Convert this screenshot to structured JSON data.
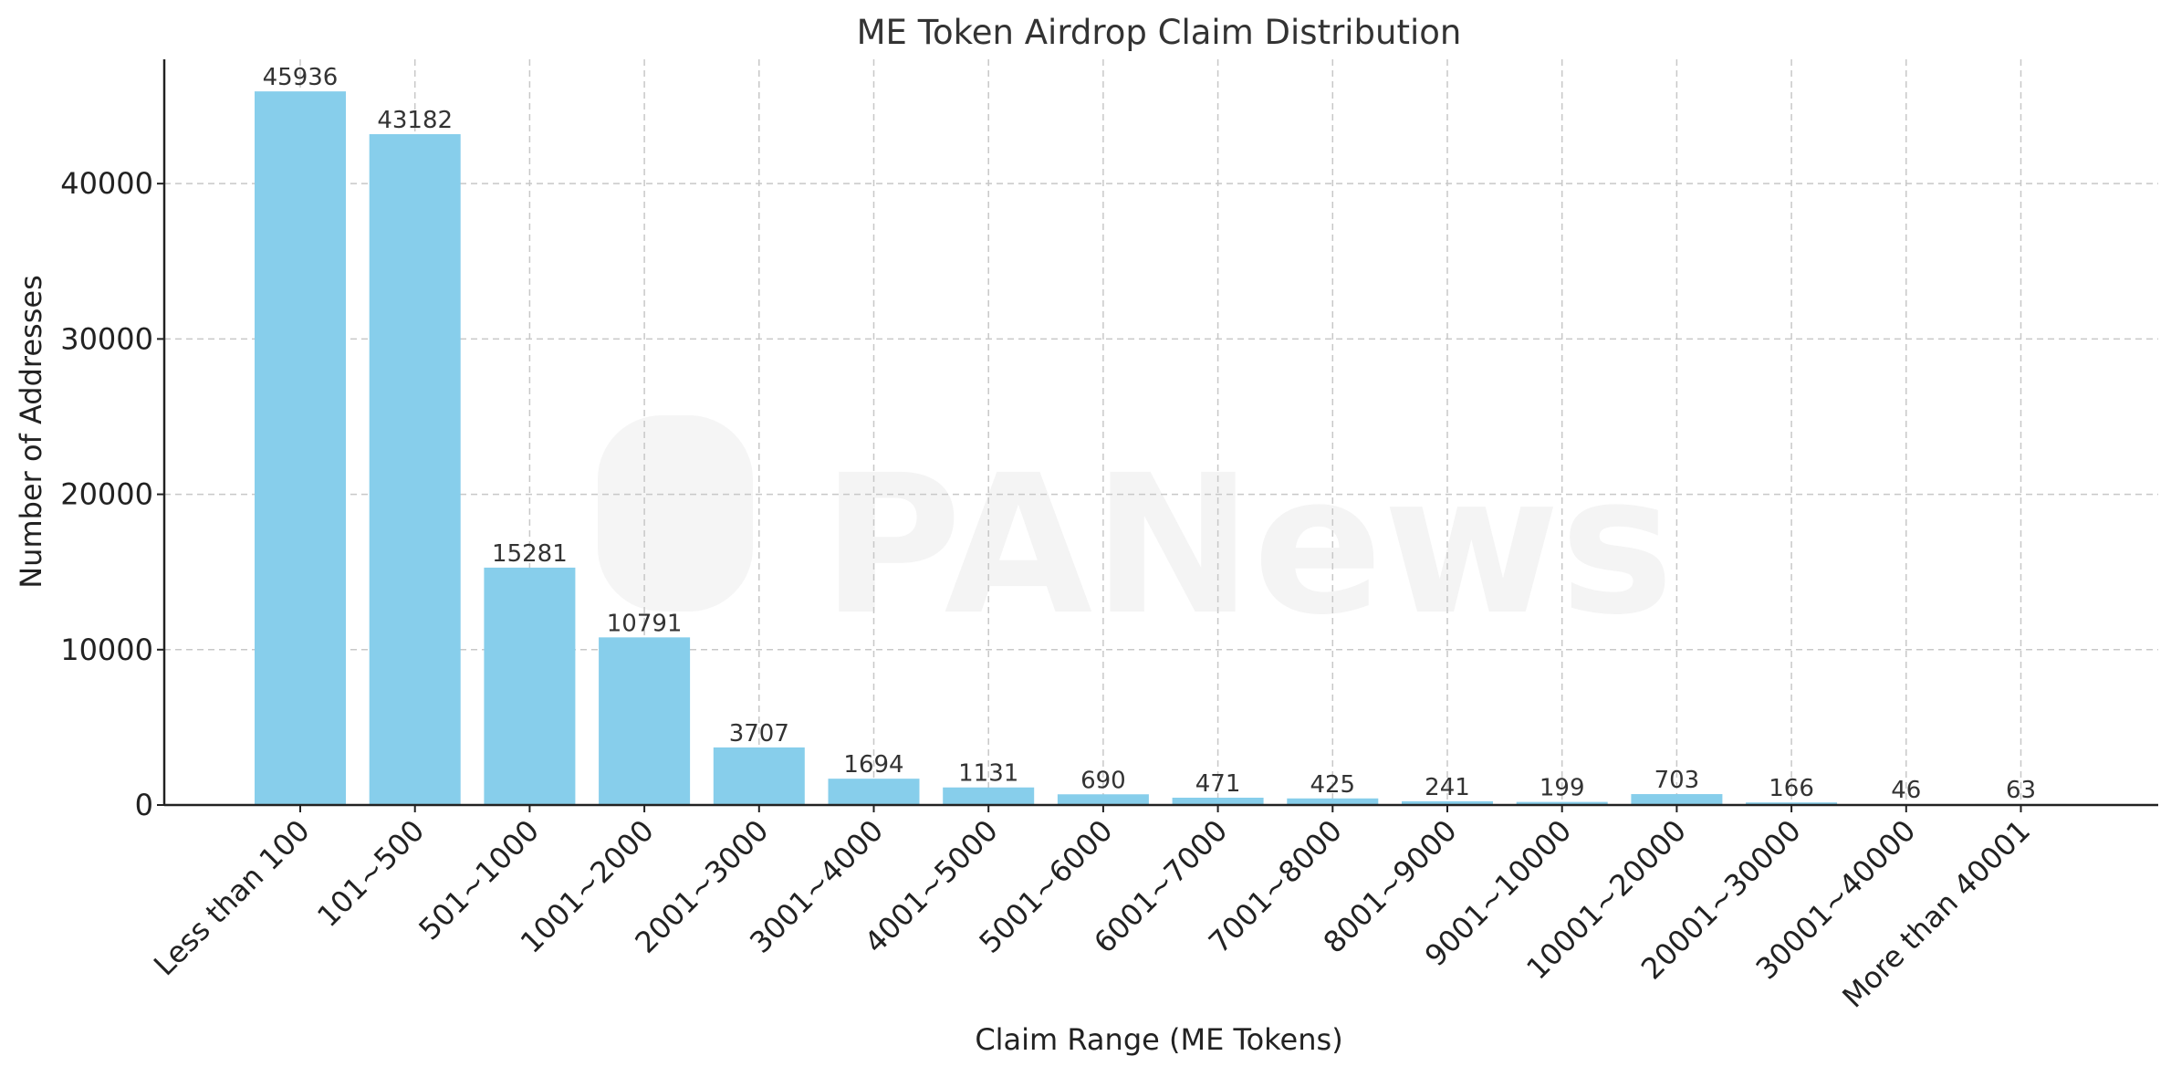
{
  "chart_data": {
    "type": "bar",
    "title": "ME Token Airdrop Claim Distribution",
    "xlabel": "Claim Range (ME Tokens)",
    "ylabel": "Number of Addresses",
    "categories": [
      "Less than 100",
      "101~500",
      "501~1000",
      "1001~2000",
      "2001~3000",
      "3001~4000",
      "4001~5000",
      "5001~6000",
      "6001~7000",
      "7001~8000",
      "8001~9000",
      "9001~10000",
      "10001~20000",
      "20001~30000",
      "30001~40000",
      "More than 40001"
    ],
    "values": [
      45936,
      43182,
      15281,
      10791,
      3707,
      1694,
      1131,
      690,
      471,
      425,
      241,
      199,
      703,
      166,
      46,
      63
    ],
    "ylim": [
      0,
      48000
    ],
    "yticks": [
      0,
      10000,
      20000,
      30000,
      40000
    ],
    "grid": true,
    "bar_color": "#87ceeb"
  },
  "watermark": "PANews"
}
